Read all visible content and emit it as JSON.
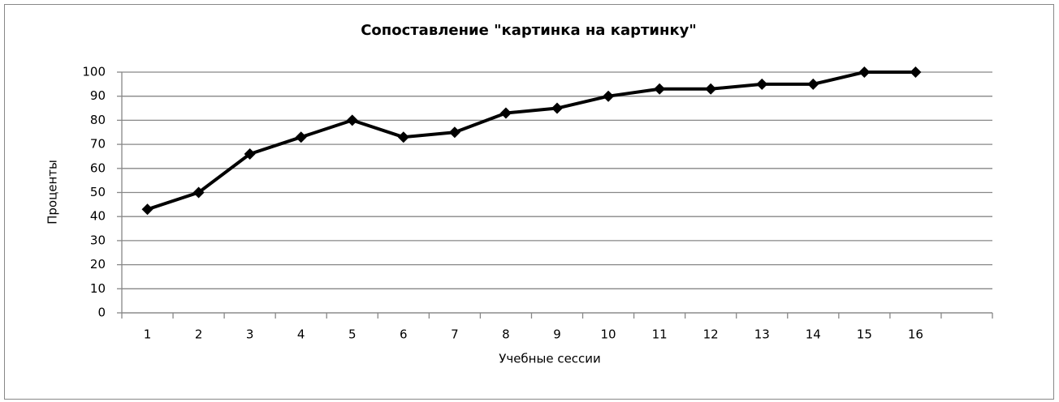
{
  "chart_data": {
    "type": "line",
    "title": "Сопоставление \"картинка на картинку\"",
    "x_label": "Учебные сессии",
    "y_label": "Проценты",
    "categories": [
      "1",
      "2",
      "3",
      "4",
      "5",
      "6",
      "7",
      "8",
      "9",
      "10",
      "11",
      "12",
      "13",
      "14",
      "15",
      "16",
      null
    ],
    "values": [
      43,
      50,
      66,
      73,
      80,
      73,
      75,
      83,
      85,
      90,
      93,
      93,
      95,
      95,
      100,
      100,
      null
    ],
    "color": "#000000",
    "ylim": [
      0,
      100
    ],
    "yticks": [
      0,
      10,
      20,
      30,
      40,
      50,
      60,
      70,
      80,
      90,
      100
    ],
    "grid": true
  }
}
